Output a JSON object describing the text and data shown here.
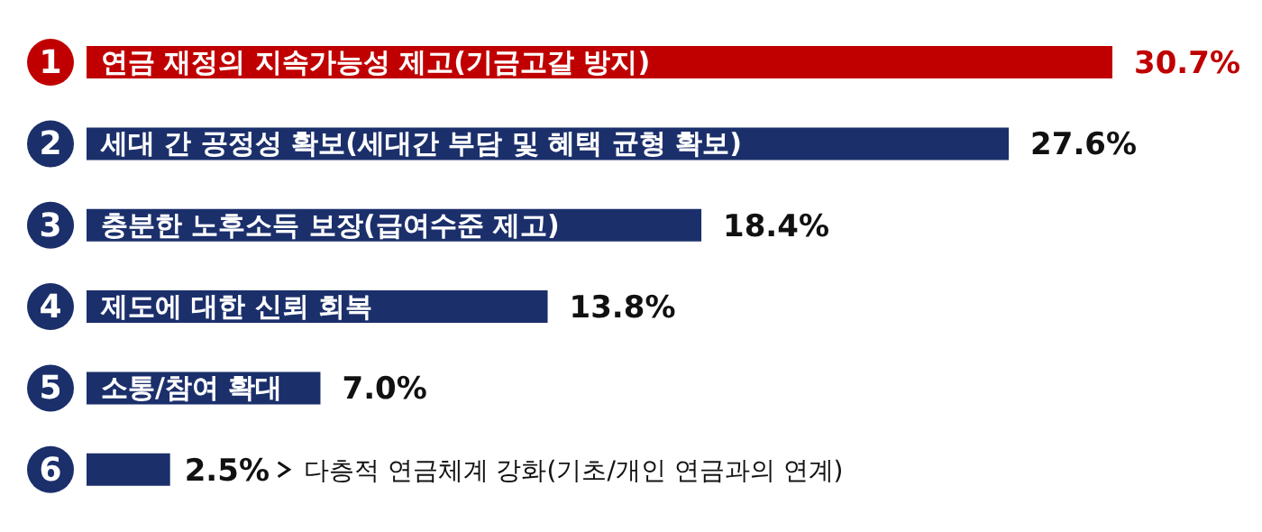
{
  "chart_data": {
    "type": "bar",
    "orientation": "horizontal",
    "categories": [
      "연금 재정의 지속가능성 제고(기금고갈 방지)",
      "세대 간 공정성 확보(세대간 부담 및 혜택 균형 확보)",
      "충분한 노후소득 보장(급여수준 제고)",
      "제도에 대한 신뢰 회복",
      "소통/참여 확대",
      "다층적 연금체계 강화(기초/개인 연금과의 연계)"
    ],
    "values": [
      30.7,
      27.6,
      18.4,
      13.8,
      7.0,
      2.5
    ],
    "value_labels": [
      "30.7%",
      "27.6%",
      "18.4%",
      "13.8%",
      "7.0%",
      "2.5%"
    ],
    "colors": [
      "#c00000",
      "#1b2f6b",
      "#1b2f6b",
      "#1b2f6b",
      "#1b2f6b",
      "#1b2f6b"
    ],
    "annotations": [
      "1",
      "2",
      "3",
      "4",
      "5",
      "6"
    ]
  }
}
